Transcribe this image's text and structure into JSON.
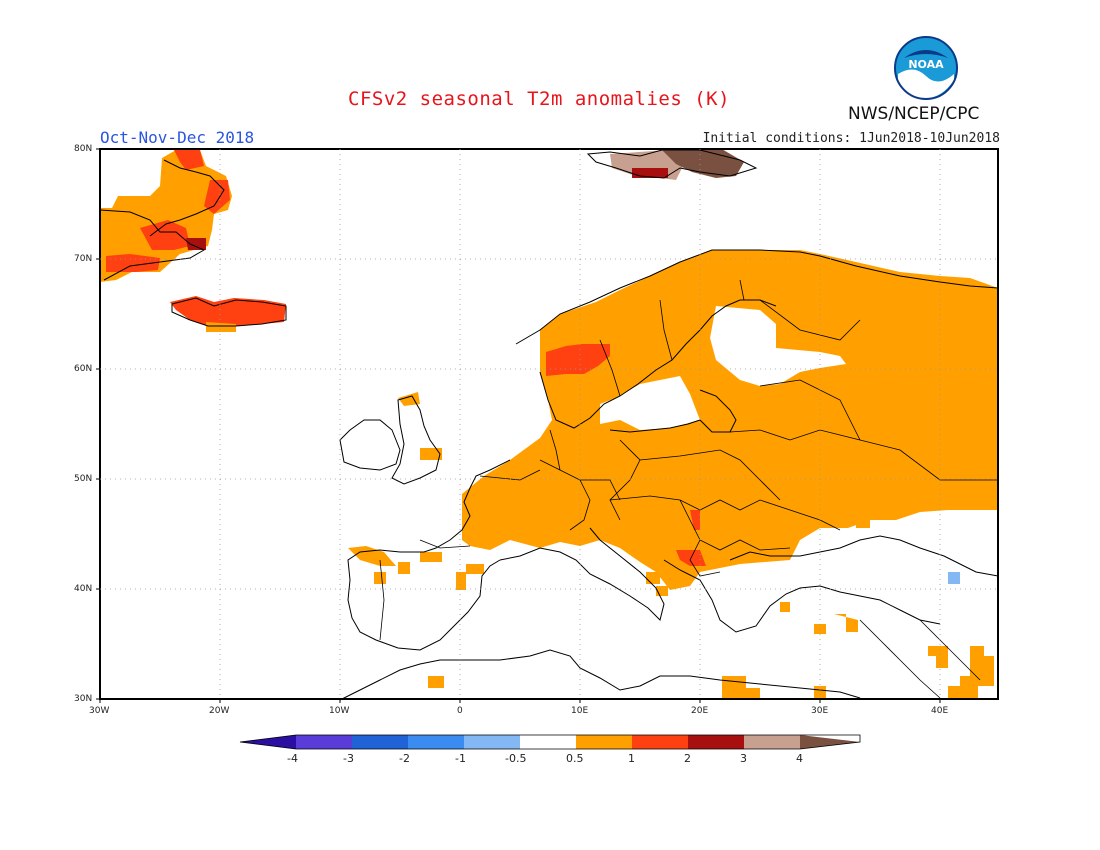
{
  "header": {
    "title": "CFSv2 seasonal T2m anomalies (K)",
    "season": "Oct-Nov-Dec 2018",
    "initial_conditions": "Initial conditions: 1Jun2018-10Jun2018",
    "agency": "NWS/NCEP/CPC",
    "logo_text": "NOAA"
  },
  "map": {
    "latitude_labels": [
      "80N",
      "70N",
      "60N",
      "50N",
      "40N",
      "30N"
    ],
    "longitude_labels": [
      "30W",
      "20W",
      "10W",
      "0",
      "10E",
      "20E",
      "30E",
      "40E"
    ],
    "lon_range": [
      -30,
      45
    ],
    "lat_range": [
      30,
      80
    ],
    "gridlines": "dotted"
  },
  "colorbar": {
    "labels": [
      "-4",
      "-3",
      "-2",
      "-1",
      "-0.5",
      "0.5",
      "1",
      "2",
      "3",
      "4"
    ],
    "colors": [
      "#2a0fa0",
      "#5a3cd8",
      "#1f63d6",
      "#3a8cf0",
      "#84b8f5",
      "#ffffff",
      "#ffa000",
      "#ff4010",
      "#a81010",
      "#c8a090",
      "#7a5040"
    ]
  }
}
